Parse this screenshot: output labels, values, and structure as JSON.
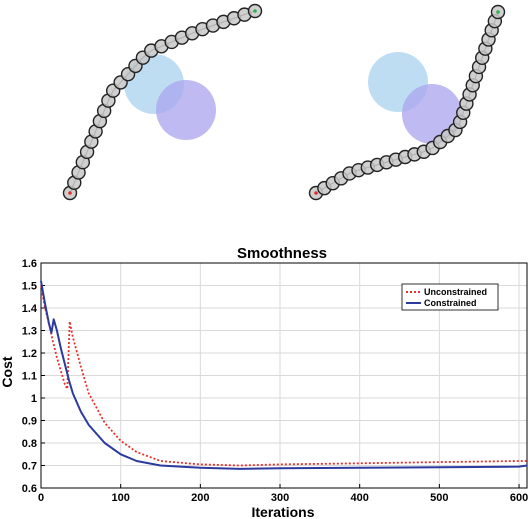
{
  "illustration": {
    "panels": [
      {
        "chain": "robot-arm-left",
        "obstacle_colors": [
          "#a9d2ee",
          "#a9a4ee"
        ]
      },
      {
        "chain": "robot-arm-right",
        "obstacle_colors": [
          "#a9d2ee",
          "#a9a4ee"
        ]
      }
    ],
    "link_color": "#c8c8c8",
    "outline_color": "#222222",
    "start_marker_color": "#e03030",
    "end_marker_color": "#30b050"
  },
  "chart_data": {
    "type": "line",
    "title": "Smoothness",
    "xlabel": "Iterations",
    "ylabel": "Cost",
    "xlim": [
      0,
      610
    ],
    "ylim": [
      0.6,
      1.6
    ],
    "xticks": [
      "0",
      "100",
      "200",
      "300",
      "400",
      "500",
      "600"
    ],
    "yticks": [
      "0.6",
      "0.7",
      "0.8",
      "0.9",
      "1",
      "1.1",
      "1.2",
      "1.3",
      "1.4",
      "1.5",
      "1.6"
    ],
    "grid": true,
    "legend_position": "top-right",
    "series": [
      {
        "name": "Unconstrained",
        "color": "#e8302a",
        "style": "dotted",
        "x": [
          0,
          5,
          10,
          15,
          20,
          25,
          30,
          33,
          36,
          40,
          50,
          60,
          80,
          100,
          120,
          150,
          200,
          250,
          300,
          400,
          500,
          600,
          610
        ],
        "y": [
          1.5,
          1.4,
          1.33,
          1.25,
          1.18,
          1.12,
          1.06,
          1.04,
          1.34,
          1.27,
          1.14,
          1.02,
          0.89,
          0.81,
          0.76,
          0.72,
          0.705,
          0.7,
          0.705,
          0.71,
          0.715,
          0.72,
          0.72
        ]
      },
      {
        "name": "Constrained",
        "color": "#2b3a9e",
        "style": "solid",
        "x": [
          0,
          5,
          10,
          13,
          16,
          20,
          25,
          30,
          35,
          40,
          50,
          60,
          80,
          100,
          120,
          150,
          200,
          250,
          300,
          400,
          500,
          600,
          610
        ],
        "y": [
          1.52,
          1.42,
          1.33,
          1.29,
          1.35,
          1.3,
          1.22,
          1.15,
          1.08,
          1.02,
          0.94,
          0.88,
          0.8,
          0.75,
          0.72,
          0.7,
          0.69,
          0.685,
          0.688,
          0.69,
          0.692,
          0.695,
          0.7
        ]
      }
    ]
  }
}
